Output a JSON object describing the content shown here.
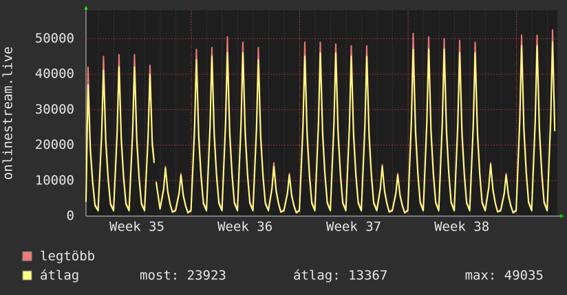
{
  "chart_data": {
    "type": "line",
    "y_label": "onlinestream.live",
    "x": [
      0,
      0.13,
      0.28,
      0.43,
      0.58,
      0.78,
      1.01,
      1.13,
      1.28,
      1.43,
      1.58,
      1.78,
      2.01,
      2.13,
      2.28,
      2.43,
      2.58,
      2.78,
      3.01,
      3.13,
      3.28,
      3.43,
      3.58,
      3.78,
      4.01,
      4.13,
      4.28,
      4.4,
      4.47,
      4.53,
      4.78,
      5.01,
      5.13,
      5.28,
      5.43,
      5.58,
      5.78,
      6.01,
      6.13,
      6.28,
      6.43,
      6.58,
      6.78,
      7.01,
      7.13,
      7.28,
      7.43,
      7.58,
      7.78,
      8.01,
      8.13,
      8.28,
      8.43,
      8.58,
      8.78,
      9.01,
      9.13,
      9.28,
      9.43,
      9.58,
      9.78,
      10.01,
      10.13,
      10.28,
      10.43,
      10.58,
      10.78,
      11.01,
      11.13,
      11.28,
      11.43,
      11.58,
      11.78,
      12.01,
      12.13,
      12.28,
      12.43,
      12.58,
      12.78,
      13.01,
      13.13,
      13.28,
      13.43,
      13.58,
      13.78,
      14.01,
      14.13,
      14.28,
      14.43,
      14.58,
      14.78,
      15.01,
      15.13,
      15.28,
      15.43,
      15.58,
      15.78,
      16.01,
      16.13,
      16.28,
      16.43,
      16.58,
      16.78,
      17.01,
      17.13,
      17.28,
      17.43,
      17.58,
      17.78,
      18.01,
      18.13,
      18.28,
      18.43,
      18.58,
      18.78,
      19.01,
      19.13,
      19.28,
      19.43,
      19.58,
      19.78,
      20.01,
      20.13,
      20.28,
      20.43,
      20.58,
      20.78,
      21.01,
      21.13,
      21.28,
      21.43,
      21.58,
      21.78,
      22.01,
      22.13,
      22.28,
      22.43,
      22.58,
      22.78,
      23.01,
      23.13,
      23.28,
      23.43,
      23.58,
      23.78,
      24.01,
      24.13,
      24.28,
      24.43,
      24.58,
      24.78,
      25.01,
      25.13,
      25.28,
      25.43,
      25.58,
      25.78,
      26.01,
      26.13,
      26.28,
      26.43,
      26.58,
      26.78,
      27.01,
      27.13,
      27.28,
      27.43,
      27.58,
      27.78,
      28.01,
      28.13,
      28.28,
      28.43,
      28.58,
      28.78,
      29.01,
      29.13,
      29.28,
      29.43,
      29.58,
      29.78,
      30.01,
      30.13,
      30.27
    ],
    "series": [
      {
        "name": "legtöbb",
        "color": "#f07878",
        "values": [
          4500,
          42000,
          19600,
          10000,
          3300,
          1800,
          23800,
          45000,
          21700,
          11100,
          3700,
          1800,
          24400,
          45500,
          22300,
          11300,
          3800,
          1800,
          24400,
          45500,
          22300,
          11300,
          3800,
          1800,
          23200,
          42500,
          21200,
          15800,
          null,
          9800,
          2200,
          7800,
          14000,
          7100,
          3600,
          1200,
          1800,
          6700,
          12000,
          6100,
          3100,
          1000,
          1800,
          25500,
          47000,
          23300,
          11900,
          4000,
          1800,
          26100,
          47500,
          23900,
          12200,
          4100,
          1800,
          26700,
          50500,
          24400,
          12400,
          4100,
          1800,
          26700,
          49000,
          24400,
          12400,
          4100,
          1800,
          25500,
          47500,
          23300,
          11900,
          4000,
          1800,
          8100,
          15000,
          7400,
          3800,
          1300,
          1800,
          6700,
          12000,
          6100,
          3100,
          1000,
          1800,
          26100,
          49000,
          23900,
          12200,
          4100,
          1800,
          26700,
          49000,
          24400,
          12400,
          4100,
          1800,
          26700,
          48500,
          24400,
          12400,
          4100,
          1800,
          26100,
          48000,
          23900,
          12200,
          4100,
          1800,
          26100,
          48000,
          23900,
          12200,
          4100,
          1800,
          8100,
          14500,
          7400,
          3800,
          1300,
          1800,
          6700,
          12000,
          6100,
          3100,
          1000,
          1800,
          27300,
          51500,
          24900,
          12700,
          4200,
          1800,
          27300,
          50500,
          24900,
          12700,
          4200,
          1800,
          27300,
          50000,
          24900,
          12700,
          4200,
          1800,
          26700,
          49500,
          24400,
          12400,
          4100,
          1800,
          26700,
          49000,
          24400,
          12400,
          4100,
          1800,
          8400,
          15000,
          7700,
          3900,
          1300,
          1800,
          6700,
          12000,
          6100,
          3100,
          1000,
          1800,
          27800,
          51000,
          25400,
          13000,
          4300,
          1800,
          27800,
          51000,
          25400,
          13000,
          4300,
          1800,
          28400,
          52500,
          25300
        ]
      },
      {
        "name": "átlag",
        "color": "#ffff80",
        "values": [
          4000,
          37000,
          18500,
          9250,
          2960,
          1500,
          22550,
          41000,
          20500,
          10250,
          3280,
          1500,
          23100,
          42000,
          21000,
          10500,
          3360,
          1500,
          23100,
          42000,
          21000,
          10500,
          3360,
          1500,
          22000,
          40000,
          20000,
          15000,
          null,
          9500,
          2000,
          7400,
          13500,
          6750,
          3380,
          1080,
          1500,
          6300,
          11500,
          5750,
          2880,
          920,
          1500,
          24200,
          44000,
          22000,
          11000,
          3520,
          1500,
          24750,
          45000,
          22500,
          11250,
          3600,
          1500,
          25300,
          46000,
          23000,
          11500,
          3680,
          1500,
          25300,
          46000,
          23000,
          11500,
          3680,
          1500,
          24200,
          44000,
          22000,
          11000,
          3520,
          1500,
          7700,
          14000,
          7000,
          3500,
          1120,
          1500,
          6300,
          11500,
          5750,
          2880,
          920,
          1500,
          24750,
          45000,
          22500,
          11250,
          3600,
          1500,
          25300,
          46000,
          23000,
          11500,
          3680,
          1500,
          25300,
          46000,
          23000,
          11500,
          3680,
          1500,
          24750,
          45000,
          22500,
          11250,
          3600,
          1500,
          24750,
          45000,
          22500,
          11250,
          3600,
          1500,
          7700,
          14000,
          7000,
          3500,
          1120,
          1500,
          6300,
          11500,
          5750,
          2880,
          920,
          1500,
          25850,
          47000,
          23500,
          11750,
          3760,
          1500,
          25850,
          47000,
          23500,
          11750,
          3760,
          1500,
          25850,
          47000,
          23500,
          11750,
          3760,
          1500,
          25300,
          46000,
          23000,
          11500,
          3680,
          1500,
          25300,
          46000,
          23000,
          11500,
          3680,
          1500,
          7980,
          14500,
          7250,
          3630,
          1160,
          1500,
          6300,
          11500,
          5750,
          2880,
          920,
          1500,
          26400,
          48000,
          24000,
          12000,
          3840,
          1500,
          26400,
          48000,
          24000,
          12000,
          3840,
          1500,
          26950,
          49035,
          23923
        ]
      }
    ],
    "stats": [
      "most: 23923",
      "átlag: 13367",
      "max: 49035"
    ],
    "xlim": [
      0,
      30.44
    ],
    "xticks": [
      {
        "value": 3.29,
        "label": "Week 35"
      },
      {
        "value": 10.27,
        "label": "Week 36"
      },
      {
        "value": 17.29,
        "label": "Week 37"
      },
      {
        "value": 24.27,
        "label": "Week 38"
      }
    ],
    "xgrid": [
      6.8,
      13.8,
      20.8,
      27.8
    ],
    "ylim": [
      0,
      58000
    ],
    "yticks": [
      0,
      10000,
      20000,
      30000,
      40000,
      50000
    ],
    "grid": true
  }
}
